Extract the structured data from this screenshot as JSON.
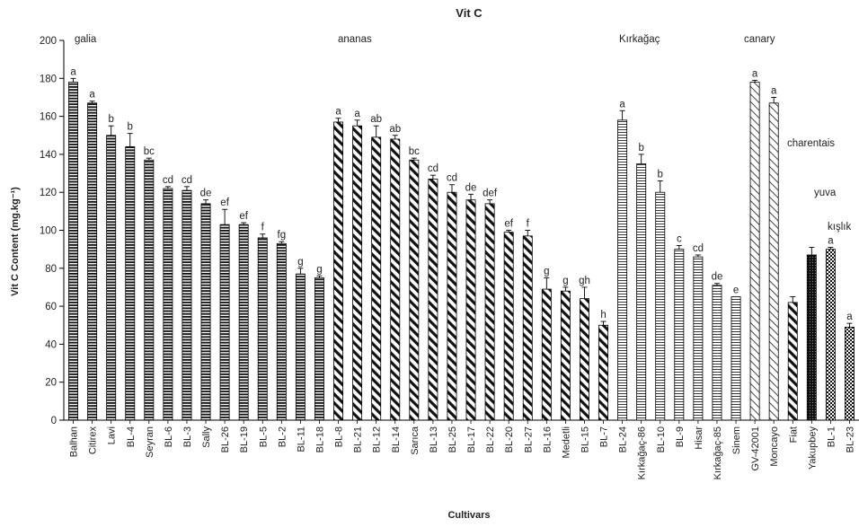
{
  "chart_data": {
    "type": "bar",
    "title": "Vit C",
    "xlabel": "Cultivars",
    "ylabel": "Vit C Content (mg.kg⁻¹)",
    "ylim": [
      0,
      200
    ],
    "yticks": [
      0,
      20,
      40,
      60,
      80,
      100,
      120,
      140,
      160,
      180,
      200
    ],
    "grid": false,
    "categories": [
      "Balhan",
      "Citirex",
      "Lavi",
      "BL-4",
      "Seyran",
      "BL-6",
      "BL-3",
      "Sally",
      "BL-26",
      "BL-19",
      "BL-5",
      "BL-2",
      "BL-11",
      "BL-18",
      "BL-8",
      "BL-21",
      "BL-12",
      "BL-14",
      "Sarıca",
      "BL-13",
      "BL-25",
      "BL-17",
      "BL-22",
      "BL-20",
      "BL-27",
      "BL-16",
      "Medetli",
      "BL-15",
      "BL-7",
      "BL-24",
      "Kırkağaç-86",
      "BL-10",
      "BL-9",
      "Hisar",
      "Kırkağaç-85",
      "Sinem",
      "GV-42001",
      "Moncayo",
      "Fiat",
      "Yakupbey",
      "BL-1",
      "BL-23"
    ],
    "values": [
      178,
      167,
      150,
      144,
      137,
      122,
      121,
      114,
      103,
      103,
      96,
      93,
      77,
      75,
      157,
      155,
      149,
      148,
      137,
      127,
      120,
      116,
      114,
      99,
      97,
      69,
      68,
      64,
      50,
      158,
      135,
      120,
      90,
      86,
      71,
      65,
      178,
      167,
      62,
      87,
      90,
      49
    ],
    "errors": [
      2,
      1,
      5,
      7,
      1,
      1,
      2,
      2,
      8,
      1,
      2,
      1,
      3,
      1,
      2,
      3,
      6,
      2,
      1,
      2,
      4,
      3,
      2,
      1,
      3,
      6,
      2,
      6,
      2,
      5,
      5,
      6,
      2,
      1,
      1,
      0,
      1,
      3,
      3,
      4,
      1,
      2
    ],
    "significance_letters": [
      "a",
      "a",
      "b",
      "b",
      "bc",
      "cd",
      "cd",
      "de",
      "ef",
      "ef",
      "f",
      "fg",
      "g",
      "g",
      "a",
      "a",
      "ab",
      "ab",
      "bc",
      "cd",
      "cd",
      "de",
      "def",
      "ef",
      "f",
      "g",
      "g",
      "gh",
      "h",
      "a",
      "b",
      "b",
      "c",
      "cd",
      "de",
      "e",
      "a",
      "a",
      "",
      "",
      "a",
      "a"
    ],
    "groups": [
      {
        "name": "galia",
        "start": 0,
        "end": 13,
        "pattern": "hstripe-dense"
      },
      {
        "name": "ananas",
        "start": 14,
        "end": 28,
        "pattern": "diag-bold"
      },
      {
        "name": "Kırkağaç",
        "start": 29,
        "end": 35,
        "pattern": "hstripe-thin"
      },
      {
        "name": "canary",
        "start": 36,
        "end": 37,
        "pattern": "diag-light"
      },
      {
        "name": "charentais",
        "start": 38,
        "end": 38,
        "pattern": "diag-bold"
      },
      {
        "name": "yuva",
        "start": 39,
        "end": 39,
        "pattern": "dots-dark"
      },
      {
        "name": "kışlık",
        "start": 40,
        "end": 41,
        "pattern": "checker"
      }
    ],
    "colors": {
      "axis": "#000000",
      "bar_stroke": "#000000",
      "background": "#ffffff"
    }
  }
}
